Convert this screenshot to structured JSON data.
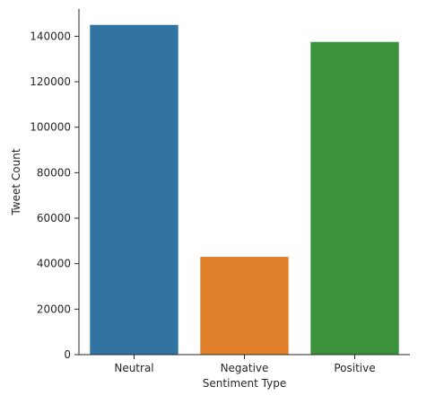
{
  "chart_data": {
    "type": "bar",
    "title": "",
    "xlabel": "Sentiment Type",
    "ylabel": "Tweet Count",
    "categories": [
      "Neutral",
      "Negative",
      "Positive"
    ],
    "values": [
      145000,
      43000,
      137500
    ],
    "colors": [
      "#3274a1",
      "#e1812c",
      "#3a923a"
    ],
    "ylim": [
      0,
      152000
    ],
    "yticks": [
      0,
      20000,
      40000,
      60000,
      80000,
      100000,
      120000,
      140000
    ],
    "grid": false,
    "legend": "none"
  }
}
